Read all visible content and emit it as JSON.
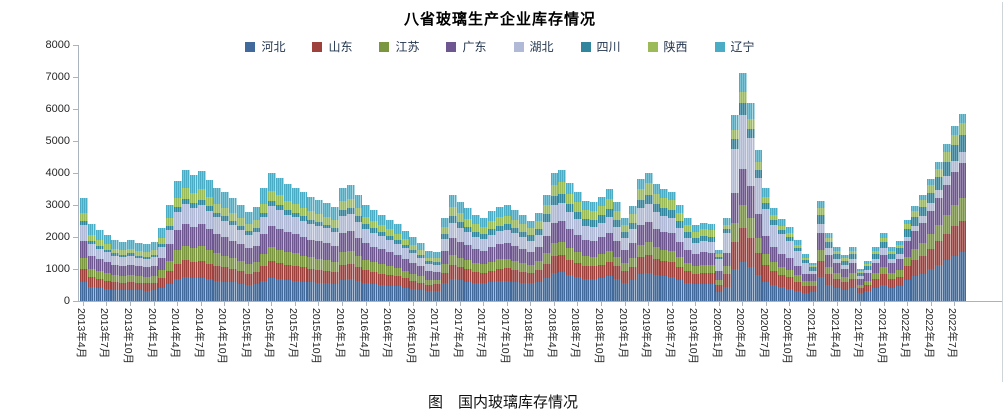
{
  "figure": {
    "title": "八省玻璃生产企业库存情况",
    "caption": "图　国内玻璃库存情况"
  },
  "chart_data": {
    "type": "bar",
    "stacked": true,
    "title": "八省玻璃生产企业库存情况",
    "legend_position": "top",
    "grid": false,
    "ylim": [
      0,
      8000
    ],
    "y_ticks": [
      0,
      1000,
      2000,
      3000,
      4000,
      5000,
      6000,
      7000,
      8000
    ],
    "x_start": "2013年4月",
    "x_end": "2022年8月",
    "x_tick_every": 3,
    "x_tick_labels": [
      "2013年4月",
      "2013年7月",
      "2013年10月",
      "2014年1月",
      "2014年4月",
      "2014年7月",
      "2014年10月",
      "2015年1月",
      "2015年4月",
      "2015年7月",
      "2015年10月",
      "2016年1月",
      "2016年4月",
      "2016年7月",
      "2016年10月",
      "2017年1月",
      "2017年4月",
      "2017年7月",
      "2017年10月",
      "2018年1月",
      "2018年4月",
      "2018年7月",
      "2018年10月",
      "2019年1月",
      "2019年4月",
      "2019年7月",
      "2019年10月",
      "2020年1月",
      "2020年4月",
      "2020年7月",
      "2020年10月",
      "2021年1月",
      "2021年4月",
      "2021年7月",
      "2021年10月",
      "2022年1月",
      "2022年4月",
      "2022年7月"
    ],
    "sampling_note": "values are monthly estimates read from the dense weekly stacked columns",
    "series": [
      {
        "id": "hebei",
        "name": "河北",
        "color": "#41699C",
        "values": [
          580,
          430,
          400,
          370,
          340,
          330,
          340,
          330,
          320,
          330,
          410,
          540,
          680,
          740,
          710,
          730,
          680,
          640,
          610,
          580,
          540,
          500,
          530,
          630,
          720,
          690,
          660,
          640,
          610,
          590,
          570,
          550,
          530,
          670,
          690,
          630,
          570,
          540,
          510,
          480,
          460,
          420,
          380,
          340,
          300,
          320,
          550,
          690,
          650,
          610,
          570,
          550,
          590,
          620,
          630,
          600,
          570,
          550,
          600,
          730,
          880,
          900,
          810,
          750,
          690,
          680,
          720,
          770,
          680,
          570,
          650,
          840,
          880,
          800,
          770,
          750,
          660,
          570,
          520,
          540,
          530,
          270,
          440,
          990,
          1210,
          1050,
          800,
          600,
          490,
          430,
          390,
          320,
          250,
          290,
          740,
          500,
          410,
          350,
          410,
          240,
          300,
          410,
          500,
          410,
          460,
          650,
          770,
          860,
          990,
          1130,
          1270,
          1420,
          1520
        ]
      },
      {
        "id": "shandong",
        "name": "山东",
        "color": "#9E413C",
        "values": [
          420,
          310,
          290,
          270,
          250,
          240,
          250,
          240,
          230,
          240,
          300,
          390,
          490,
          530,
          510,
          530,
          490,
          460,
          440,
          420,
          390,
          360,
          380,
          460,
          520,
          500,
          470,
          460,
          440,
          420,
          410,
          400,
          380,
          460,
          470,
          430,
          390,
          370,
          350,
          330,
          310,
          290,
          260,
          230,
          200,
          200,
          340,
          430,
          400,
          380,
          350,
          340,
          360,
          380,
          390,
          370,
          350,
          330,
          360,
          430,
          520,
          530,
          480,
          440,
          410,
          400,
          420,
          460,
          400,
          360,
          410,
          530,
          560,
          510,
          490,
          480,
          420,
          360,
          330,
          340,
          340,
          240,
          390,
          870,
          1070,
          930,
          710,
          530,
          440,
          380,
          350,
          290,
          220,
          190,
          500,
          340,
          270,
          230,
          270,
          160,
          200,
          270,
          340,
          270,
          300,
          430,
          500,
          560,
          650,
          740,
          830,
          930,
          990
        ]
      },
      {
        "id": "jiangsu",
        "name": "江苏",
        "color": "#7A963F",
        "values": [
          350,
          260,
          240,
          230,
          210,
          200,
          210,
          200,
          200,
          200,
          250,
          330,
          410,
          450,
          430,
          450,
          420,
          390,
          370,
          350,
          330,
          310,
          320,
          390,
          440,
          420,
          400,
          390,
          370,
          360,
          350,
          340,
          320,
          390,
          400,
          360,
          330,
          310,
          300,
          280,
          260,
          240,
          220,
          200,
          170,
          150,
          260,
          330,
          310,
          290,
          270,
          260,
          280,
          300,
          300,
          290,
          270,
          250,
          280,
          330,
          400,
          410,
          370,
          340,
          320,
          310,
          330,
          350,
          310,
          260,
          300,
          380,
          400,
          370,
          350,
          340,
          300,
          260,
          240,
          250,
          240,
          160,
          260,
          580,
          710,
          620,
          470,
          350,
          290,
          260,
          230,
          190,
          150,
          130,
          340,
          230,
          190,
          160,
          190,
          110,
          140,
          190,
          230,
          190,
          210,
          300,
          350,
          400,
          460,
          520,
          590,
          650,
          700
        ]
      },
      {
        "id": "guangdong",
        "name": "广东",
        "color": "#6E5791",
        "values": [
          540,
          410,
          370,
          350,
          320,
          310,
          320,
          310,
          300,
          310,
          390,
          510,
          640,
          700,
          670,
          690,
          650,
          600,
          580,
          540,
          510,
          480,
          500,
          600,
          680,
          650,
          620,
          600,
          580,
          550,
          540,
          520,
          500,
          600,
          620,
          560,
          510,
          480,
          460,
          430,
          410,
          370,
          340,
          310,
          260,
          240,
          420,
          530,
          500,
          460,
          430,
          420,
          450,
          470,
          480,
          460,
          430,
          400,
          440,
          530,
          640,
          660,
          590,
          540,
          500,
          500,
          520,
          560,
          500,
          420,
          470,
          610,
          640,
          580,
          560,
          540,
          480,
          420,
          380,
          390,
          380,
          260,
          420,
          930,
          1140,
          990,
          750,
          560,
          460,
          410,
          370,
          300,
          230,
          220,
          560,
          380,
          310,
          260,
          310,
          180,
          230,
          310,
          380,
          310,
          340,
          480,
          560,
          630,
          720,
          830,
          930,
          1040,
          1110
        ]
      },
      {
        "id": "hubei",
        "name": "湖北",
        "color": "#B0BAD6",
        "values": [
          480,
          360,
          330,
          310,
          290,
          280,
          290,
          270,
          270,
          280,
          350,
          450,
          560,
          620,
          590,
          610,
          570,
          530,
          510,
          480,
          450,
          420,
          440,
          530,
          600,
          580,
          550,
          530,
          510,
          490,
          470,
          460,
          440,
          530,
          550,
          500,
          450,
          430,
          400,
          380,
          360,
          330,
          300,
          270,
          230,
          210,
          360,
          460,
          430,
          410,
          380,
          360,
          390,
          410,
          420,
          400,
          380,
          350,
          390,
          460,
          560,
          570,
          520,
          480,
          440,
          430,
          460,
          490,
          430,
          360,
          410,
          530,
          560,
          510,
          490,
          480,
          420,
          360,
          330,
          340,
          340,
          380,
          620,
          1390,
          1700,
          1490,
          1130,
          840,
          700,
          610,
          550,
          460,
          350,
          110,
          280,
          190,
          150,
          130,
          150,
          90,
          110,
          150,
          190,
          150,
          170,
          150,
          180,
          200,
          230,
          260,
          290,
          330,
          350
        ]
      },
      {
        "id": "sichuan",
        "name": "四川",
        "color": "#31859C",
        "values": [
          130,
          100,
          90,
          80,
          80,
          70,
          80,
          70,
          70,
          70,
          90,
          120,
          150,
          160,
          160,
          160,
          150,
          140,
          140,
          130,
          120,
          110,
          120,
          140,
          160,
          150,
          150,
          140,
          140,
          130,
          130,
          120,
          120,
          180,
          180,
          170,
          150,
          140,
          140,
          130,
          120,
          110,
          100,
          90,
          80,
          90,
          160,
          200,
          190,
          170,
          160,
          160,
          170,
          180,
          180,
          170,
          160,
          180,
          190,
          230,
          280,
          290,
          260,
          240,
          220,
          220,
          230,
          250,
          220,
          180,
          210,
          270,
          280,
          260,
          250,
          240,
          210,
          180,
          160,
          170,
          170,
          80,
          130,
          290,
          360,
          310,
          240,
          180,
          150,
          130,
          120,
          100,
          70,
          110,
          280,
          190,
          150,
          130,
          150,
          90,
          110,
          150,
          190,
          150,
          170,
          230,
          270,
          300,
          340,
          390,
          440,
          490,
          530
        ]
      },
      {
        "id": "shaanxi",
        "name": "陕西",
        "color": "#9BBB59",
        "values": [
          260,
          190,
          180,
          160,
          150,
          150,
          150,
          150,
          140,
          150,
          180,
          240,
          300,
          330,
          320,
          320,
          300,
          280,
          270,
          260,
          240,
          220,
          240,
          280,
          320,
          310,
          290,
          280,
          270,
          260,
          250,
          240,
          240,
          280,
          290,
          260,
          240,
          230,
          220,
          200,
          190,
          180,
          160,
          140,
          120,
          140,
          230,
          300,
          280,
          260,
          240,
          230,
          250,
          270,
          270,
          260,
          240,
          220,
          250,
          300,
          360,
          370,
          330,
          310,
          280,
          280,
          290,
          320,
          280,
          230,
          270,
          340,
          360,
          330,
          320,
          310,
          270,
          230,
          210,
          220,
          220,
          80,
          130,
          290,
          360,
          310,
          240,
          180,
          150,
          130,
          120,
          100,
          70,
          70,
          190,
          130,
          100,
          90,
          100,
          60,
          80,
          100,
          130,
          100,
          110,
          150,
          180,
          200,
          230,
          260,
          290,
          330,
          350
        ]
      },
      {
        "id": "liaoning",
        "name": "辽宁",
        "color": "#4BACC6",
        "values": [
          450,
          340,
          310,
          290,
          270,
          260,
          270,
          250,
          250,
          260,
          320,
          420,
          530,
          570,
          550,
          570,
          530,
          500,
          480,
          450,
          420,
          390,
          410,
          490,
          560,
          540,
          510,
          500,
          480,
          460,
          440,
          430,
          410,
          420,
          440,
          400,
          360,
          340,
          320,
          310,
          290,
          260,
          240,
          220,
          190,
          170,
          290,
          360,
          340,
          320,
          300,
          290,
          310,
          320,
          330,
          310,
          300,
          220,
          250,
          300,
          360,
          370,
          330,
          310,
          280,
          280,
          290,
          320,
          280,
          210,
          240,
          300,
          320,
          290,
          280,
          270,
          240,
          210,
          190,
          200,
          190,
          130,
          210,
          460,
          570,
          500,
          380,
          280,
          230,
          200,
          180,
          150,
          120,
          80,
          220,
          150,
          120,
          100,
          120,
          70,
          90,
          120,
          150,
          120,
          130,
          130,
          150,
          170,
          190,
          220,
          250,
          270,
          290
        ]
      }
    ]
  }
}
